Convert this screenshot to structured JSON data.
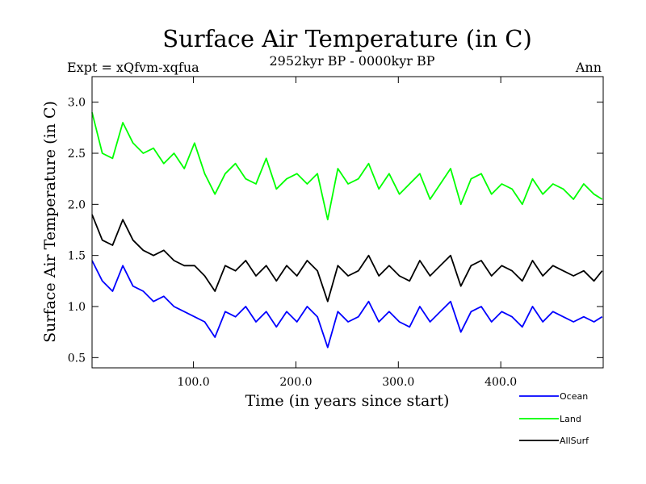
{
  "chart_data": {
    "type": "line",
    "title": "Surface Air Temperature (in C)",
    "subtitle": "2952kyr BP - 0000kyr BP",
    "left_annotation": "Expt = xQfvm-xqfua",
    "right_annotation": "Ann",
    "xlabel": "Time (in years since start)",
    "ylabel": "Surface Air Temperature (in C)",
    "xlim": [
      1,
      500
    ],
    "ylim": [
      0.4,
      3.25
    ],
    "x_ticks": [
      100,
      200,
      300,
      400
    ],
    "x_tick_labels": [
      "100.0",
      "200.0",
      "300.0",
      "400.0"
    ],
    "y_ticks": [
      0.5,
      1.0,
      1.5,
      2.0,
      2.5,
      3.0
    ],
    "y_tick_labels": [
      "0.5",
      "1.0",
      "1.5",
      "2.0",
      "2.5",
      "3.0"
    ],
    "grid": false,
    "legend_position": "bottom-right",
    "series": [
      {
        "name": "Ocean",
        "color": "#0000ff",
        "x": [
          1,
          11,
          21,
          31,
          41,
          51,
          61,
          71,
          81,
          91,
          101,
          111,
          121,
          131,
          141,
          151,
          161,
          171,
          181,
          191,
          201,
          211,
          221,
          231,
          241,
          251,
          261,
          271,
          281,
          291,
          301,
          311,
          321,
          331,
          341,
          351,
          361,
          371,
          381,
          391,
          401,
          411,
          421,
          431,
          441,
          451,
          461,
          471,
          481,
          491,
          499
        ],
        "values": [
          1.45,
          1.25,
          1.15,
          1.4,
          1.2,
          1.15,
          1.05,
          1.1,
          1.0,
          0.95,
          0.9,
          0.85,
          0.7,
          0.95,
          0.9,
          1.0,
          0.85,
          0.95,
          0.8,
          0.95,
          0.85,
          1.0,
          0.9,
          0.6,
          0.95,
          0.85,
          0.9,
          1.05,
          0.85,
          0.95,
          0.85,
          0.8,
          1.0,
          0.85,
          0.95,
          1.05,
          0.75,
          0.95,
          1.0,
          0.85,
          0.95,
          0.9,
          0.8,
          1.0,
          0.85,
          0.95,
          0.9,
          0.85,
          0.9,
          0.85,
          0.9
        ]
      },
      {
        "name": "Land",
        "color": "#00ff00",
        "x": [
          1,
          11,
          21,
          31,
          41,
          51,
          61,
          71,
          81,
          91,
          101,
          111,
          121,
          131,
          141,
          151,
          161,
          171,
          181,
          191,
          201,
          211,
          221,
          231,
          241,
          251,
          261,
          271,
          281,
          291,
          301,
          311,
          321,
          331,
          341,
          351,
          361,
          371,
          381,
          391,
          401,
          411,
          421,
          431,
          441,
          451,
          461,
          471,
          481,
          491,
          499
        ],
        "values": [
          2.9,
          2.5,
          2.45,
          2.8,
          2.6,
          2.5,
          2.55,
          2.4,
          2.5,
          2.35,
          2.6,
          2.3,
          2.1,
          2.3,
          2.4,
          2.25,
          2.2,
          2.45,
          2.15,
          2.25,
          2.3,
          2.2,
          2.3,
          1.85,
          2.35,
          2.2,
          2.25,
          2.4,
          2.15,
          2.3,
          2.1,
          2.2,
          2.3,
          2.05,
          2.2,
          2.35,
          2.0,
          2.25,
          2.3,
          2.1,
          2.2,
          2.15,
          2.0,
          2.25,
          2.1,
          2.2,
          2.15,
          2.05,
          2.2,
          2.1,
          2.05
        ]
      },
      {
        "name": "AllSurf",
        "color": "#000000",
        "x": [
          1,
          11,
          21,
          31,
          41,
          51,
          61,
          71,
          81,
          91,
          101,
          111,
          121,
          131,
          141,
          151,
          161,
          171,
          181,
          191,
          201,
          211,
          221,
          231,
          241,
          251,
          261,
          271,
          281,
          291,
          301,
          311,
          321,
          331,
          341,
          351,
          361,
          371,
          381,
          391,
          401,
          411,
          421,
          431,
          441,
          451,
          461,
          471,
          481,
          491,
          499
        ],
        "values": [
          1.9,
          1.65,
          1.6,
          1.85,
          1.65,
          1.55,
          1.5,
          1.55,
          1.45,
          1.4,
          1.4,
          1.3,
          1.15,
          1.4,
          1.35,
          1.45,
          1.3,
          1.4,
          1.25,
          1.4,
          1.3,
          1.45,
          1.35,
          1.05,
          1.4,
          1.3,
          1.35,
          1.5,
          1.3,
          1.4,
          1.3,
          1.25,
          1.45,
          1.3,
          1.4,
          1.5,
          1.2,
          1.4,
          1.45,
          1.3,
          1.4,
          1.35,
          1.25,
          1.45,
          1.3,
          1.4,
          1.35,
          1.3,
          1.35,
          1.25,
          1.35
        ]
      }
    ]
  }
}
